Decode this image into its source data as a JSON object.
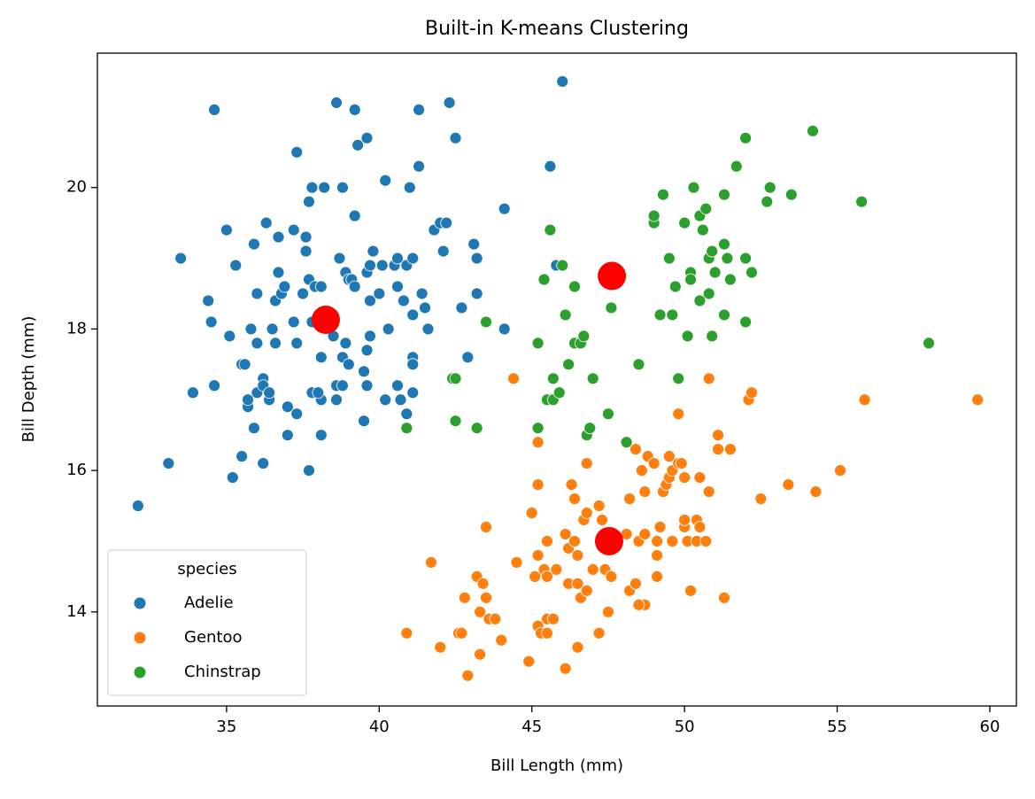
{
  "chart_data": {
    "type": "scatter",
    "title": "Built-in K-means Clustering",
    "x_label": "Bill Length (mm)",
    "y_label": "Bill Depth (mm)",
    "xlim": [
      30.77,
      60.87
    ],
    "ylim": [
      12.67,
      21.9
    ],
    "xticks": [
      35,
      40,
      45,
      50,
      55,
      60
    ],
    "yticks": [
      14,
      16,
      18,
      20
    ],
    "legend_title": "species",
    "legend_position": "lower left",
    "series": [
      {
        "name": "Adelie",
        "color": "#1f77b4",
        "x": [
          32.1,
          33.1,
          33.5,
          34.6,
          34.4,
          34.5,
          34.6,
          33.9,
          35.0,
          35.3,
          35.1,
          35.2,
          35.5,
          35.5,
          35.6,
          35.9,
          36.0,
          35.7,
          35.7,
          35.8,
          36.0,
          36.0,
          36.2,
          36.2,
          36.2,
          36.3,
          36.4,
          36.4,
          35.9,
          36.6,
          36.6,
          36.7,
          36.7,
          36.8,
          36.9,
          37.0,
          37.0,
          37.2,
          37.2,
          37.3,
          37.3,
          37.3,
          37.5,
          37.6,
          37.6,
          37.7,
          37.7,
          37.8,
          37.8,
          37.8,
          37.9,
          38.1,
          38.1,
          38.1,
          38.1,
          38.2,
          38.2,
          38.5,
          38.6,
          38.6,
          38.6,
          38.7,
          38.8,
          38.8,
          38.8,
          38.9,
          38.9,
          39.0,
          39.0,
          39.1,
          39.2,
          39.2,
          39.2,
          39.3,
          39.5,
          39.5,
          39.6,
          39.6,
          39.6,
          39.7,
          39.7,
          39.7,
          39.8,
          40.2,
          40.2,
          40.3,
          40.5,
          40.6,
          40.6,
          40.7,
          40.8,
          40.9,
          40.9,
          41.0,
          41.1,
          41.1,
          41.1,
          41.1,
          41.3,
          41.3,
          41.4,
          41.5,
          41.6,
          41.8,
          42.0,
          42.1,
          42.2,
          42.3,
          42.5,
          42.7,
          42.9,
          43.1,
          43.2,
          43.2,
          44.1,
          44.1,
          45.8,
          45.6,
          46.0,
          40.1,
          36.5,
          38.0,
          37.7,
          39.6,
          40.6,
          41.1,
          40.0
        ],
        "y": [
          15.5,
          16.1,
          19.0,
          21.1,
          18.4,
          18.1,
          17.2,
          17.1,
          19.4,
          18.9,
          17.9,
          15.9,
          16.2,
          17.5,
          17.5,
          19.2,
          18.5,
          16.9,
          17.0,
          18.0,
          17.8,
          17.1,
          17.3,
          17.2,
          16.1,
          19.5,
          17.0,
          17.1,
          16.6,
          17.8,
          18.4,
          19.3,
          18.8,
          18.5,
          18.6,
          16.9,
          16.5,
          18.1,
          19.4,
          20.5,
          17.8,
          16.8,
          18.5,
          19.3,
          19.1,
          18.7,
          19.8,
          20.0,
          18.1,
          17.1,
          18.6,
          18.6,
          17.6,
          17.0,
          16.5,
          20.0,
          18.1,
          17.9,
          21.2,
          17.2,
          17.0,
          19.0,
          20.0,
          17.6,
          17.2,
          18.8,
          17.8,
          18.7,
          17.5,
          18.7,
          21.1,
          19.6,
          18.6,
          20.6,
          17.4,
          16.7,
          20.7,
          18.8,
          17.7,
          18.9,
          18.4,
          17.9,
          19.1,
          20.1,
          17.0,
          18.0,
          18.9,
          19.0,
          18.6,
          17.0,
          18.4,
          18.9,
          16.8,
          20.0,
          19.0,
          18.2,
          17.6,
          17.5,
          21.1,
          20.3,
          18.5,
          18.3,
          18.0,
          19.4,
          19.5,
          19.1,
          19.5,
          21.2,
          20.7,
          18.3,
          17.6,
          19.2,
          19.0,
          18.5,
          19.7,
          18.0,
          18.9,
          20.3,
          21.5,
          18.9,
          18.0,
          17.1,
          16.0,
          17.2,
          17.2,
          17.1,
          18.5
        ]
      },
      {
        "name": "Gentoo",
        "color": "#ff7f0e",
        "x": [
          40.9,
          41.7,
          42.0,
          42.6,
          42.7,
          42.8,
          42.9,
          43.2,
          43.3,
          43.3,
          43.4,
          43.5,
          43.5,
          43.6,
          43.8,
          44.0,
          44.4,
          44.5,
          44.9,
          45.0,
          45.1,
          45.2,
          45.2,
          45.2,
          45.2,
          45.3,
          45.4,
          45.5,
          45.5,
          45.5,
          45.7,
          45.8,
          46.1,
          46.1,
          46.2,
          46.2,
          46.3,
          46.4,
          46.5,
          46.5,
          46.5,
          46.6,
          46.7,
          46.8,
          46.8,
          46.8,
          47.0,
          47.2,
          47.2,
          47.4,
          47.5,
          47.5,
          47.6,
          47.7,
          47.8,
          48.1,
          48.2,
          48.2,
          48.4,
          48.4,
          48.5,
          48.5,
          48.6,
          48.7,
          48.7,
          48.7,
          48.8,
          49.0,
          49.1,
          49.1,
          49.2,
          49.3,
          49.4,
          49.5,
          49.5,
          49.6,
          49.6,
          49.8,
          49.8,
          49.9,
          50.0,
          50.0,
          50.0,
          50.1,
          50.2,
          50.4,
          50.4,
          50.5,
          50.5,
          50.7,
          50.8,
          50.8,
          51.1,
          51.1,
          51.3,
          51.5,
          52.1,
          52.2,
          52.5,
          53.4,
          54.3,
          55.1,
          55.9,
          59.6,
          47.3,
          46.4,
          45.5,
          48.5,
          49.1
        ],
        "y": [
          13.7,
          14.7,
          13.5,
          13.7,
          13.7,
          14.2,
          13.1,
          14.5,
          13.4,
          14.0,
          14.4,
          14.2,
          15.2,
          13.9,
          13.9,
          13.6,
          17.3,
          14.7,
          13.3,
          15.4,
          14.5,
          13.8,
          14.8,
          15.8,
          16.4,
          13.7,
          14.6,
          13.7,
          13.9,
          15.0,
          13.9,
          14.6,
          13.2,
          15.1,
          14.9,
          14.4,
          15.8,
          15.6,
          13.5,
          14.4,
          14.8,
          14.2,
          15.3,
          15.4,
          16.1,
          14.3,
          14.6,
          13.7,
          15.5,
          14.6,
          14.0,
          15.0,
          14.5,
          15.0,
          15.0,
          15.1,
          14.3,
          15.6,
          14.4,
          16.3,
          14.1,
          15.0,
          16.0,
          14.1,
          15.1,
          15.7,
          16.2,
          16.1,
          14.5,
          15.0,
          15.2,
          15.7,
          15.8,
          15.9,
          16.2,
          15.0,
          16.0,
          16.1,
          16.8,
          16.1,
          15.2,
          15.3,
          15.9,
          15.0,
          14.3,
          15.0,
          15.3,
          15.9,
          15.2,
          15.0,
          15.7,
          17.3,
          16.3,
          16.5,
          14.2,
          16.3,
          17.0,
          17.1,
          15.6,
          15.8,
          15.7,
          16.0,
          17.0,
          17.0,
          15.3,
          15.0,
          14.5,
          14.1,
          14.8
        ]
      },
      {
        "name": "Chinstrap",
        "color": "#2ca02c",
        "x": [
          40.9,
          42.4,
          42.5,
          42.5,
          43.2,
          43.5,
          45.2,
          45.2,
          45.4,
          45.5,
          45.6,
          45.7,
          45.7,
          45.9,
          46.0,
          46.1,
          46.2,
          46.4,
          46.4,
          46.6,
          46.7,
          46.8,
          46.9,
          47.0,
          47.5,
          47.6,
          48.1,
          48.5,
          49.0,
          49.0,
          49.2,
          49.3,
          49.5,
          49.6,
          49.7,
          49.8,
          50.0,
          50.1,
          50.2,
          50.2,
          50.3,
          50.5,
          50.5,
          50.6,
          50.7,
          50.8,
          50.8,
          50.9,
          50.9,
          51.0,
          51.3,
          51.3,
          51.3,
          51.4,
          51.5,
          51.7,
          52.0,
          52.0,
          52.0,
          52.2,
          52.7,
          52.8,
          53.5,
          54.2,
          55.8,
          58.0
        ],
        "y": [
          16.6,
          17.3,
          16.7,
          17.3,
          16.6,
          18.1,
          17.8,
          16.6,
          18.7,
          17.0,
          19.4,
          17.0,
          17.3,
          17.1,
          18.9,
          18.2,
          17.5,
          18.6,
          17.8,
          17.8,
          17.9,
          16.5,
          16.6,
          17.3,
          16.8,
          18.3,
          16.4,
          17.5,
          19.5,
          19.6,
          18.2,
          19.9,
          19.0,
          18.2,
          18.6,
          17.3,
          19.5,
          17.9,
          18.8,
          18.7,
          20.0,
          18.4,
          19.6,
          19.4,
          19.7,
          18.5,
          19.0,
          17.9,
          19.1,
          18.8,
          18.2,
          19.2,
          19.9,
          19.0,
          18.7,
          20.3,
          18.1,
          19.0,
          20.7,
          18.8,
          19.8,
          20.0,
          19.9,
          20.8,
          19.8,
          17.8
        ]
      }
    ],
    "centroids": {
      "color": "#ff0000",
      "x": [
        38.25,
        47.62,
        47.53
      ],
      "y": [
        18.13,
        18.75,
        15.0
      ]
    }
  }
}
